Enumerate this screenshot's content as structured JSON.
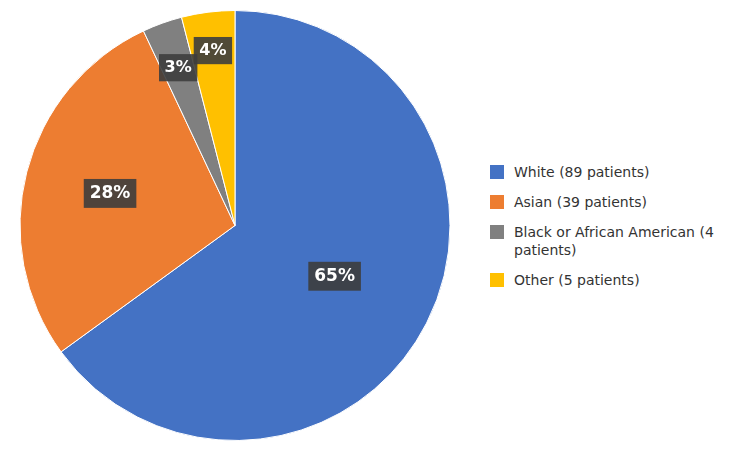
{
  "chart_data": {
    "type": "pie",
    "categories": [
      "White (89 patients)",
      "Asian (39 patients)",
      "Black or African American (4\n patients)",
      "Other (5 patients)"
    ],
    "values": [
      65,
      28,
      3,
      4
    ],
    "value_labels": [
      "65%",
      "28%",
      "3%",
      "4%"
    ],
    "data_labels": true,
    "colors": [
      "#4472C4",
      "#ED7D31",
      "#808080",
      "#FFC000"
    ],
    "legend": "right"
  }
}
